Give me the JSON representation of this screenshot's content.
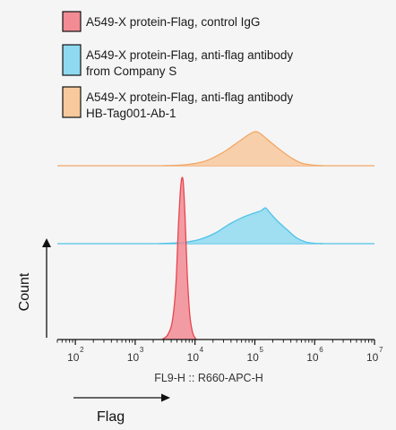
{
  "chart_data": {
    "type": "area",
    "title": "",
    "xlabel": "FL9-H :: R660-APC-H",
    "ylabel": "Count",
    "x_scale": "log",
    "xlim": [
      50,
      10000000
    ],
    "x_ticks": [
      {
        "base": "10",
        "exp": "2",
        "value": 100
      },
      {
        "base": "10",
        "exp": "3",
        "value": 1000
      },
      {
        "base": "10",
        "exp": "4",
        "value": 10000
      },
      {
        "base": "10",
        "exp": "5",
        "value": 100000
      },
      {
        "base": "10",
        "exp": "6",
        "value": 1000000
      },
      {
        "base": "10",
        "exp": "7",
        "value": 10000000
      }
    ],
    "annotation": "Flag",
    "series": [
      {
        "name": "A549-X protein-Flag, control IgG",
        "color": "#f28b93",
        "stroke": "#e8454f",
        "x": [
          2800,
          3500,
          4200,
          4800,
          5300,
          5800,
          6300,
          6800,
          7400,
          8200,
          9200,
          10500
        ],
        "y": [
          0,
          0.03,
          0.12,
          0.35,
          0.72,
          0.97,
          1.0,
          0.78,
          0.42,
          0.15,
          0.04,
          0
        ]
      },
      {
        "name": "A549-X protein-Flag, anti-flag antibody from Company S",
        "color": "#8fdaf0",
        "stroke": "#4fc3e8",
        "x": [
          2500,
          6000,
          12000,
          22000,
          38000,
          60000,
          85000,
          110000,
          130000,
          150000,
          175000,
          230000,
          350000,
          500000,
          700000,
          1000000,
          1400000
        ],
        "y": [
          0,
          0.03,
          0.12,
          0.3,
          0.55,
          0.72,
          0.82,
          0.88,
          0.93,
          1.0,
          0.88,
          0.66,
          0.38,
          0.16,
          0.05,
          0.01,
          0
        ]
      },
      {
        "name": "A549-X protein-Flag, anti-flag antibody HB-Tag001-Ab-1",
        "color": "#f7c99d",
        "stroke": "#f2a766",
        "x": [
          3000,
          7000,
          15000,
          30000,
          55000,
          80000,
          100000,
          120000,
          160000,
          250000,
          400000,
          600000,
          900000,
          1400000
        ],
        "y": [
          0,
          0.03,
          0.14,
          0.4,
          0.72,
          0.92,
          1.0,
          0.96,
          0.78,
          0.5,
          0.24,
          0.08,
          0.02,
          0
        ]
      }
    ],
    "legend_position": "top-left"
  }
}
